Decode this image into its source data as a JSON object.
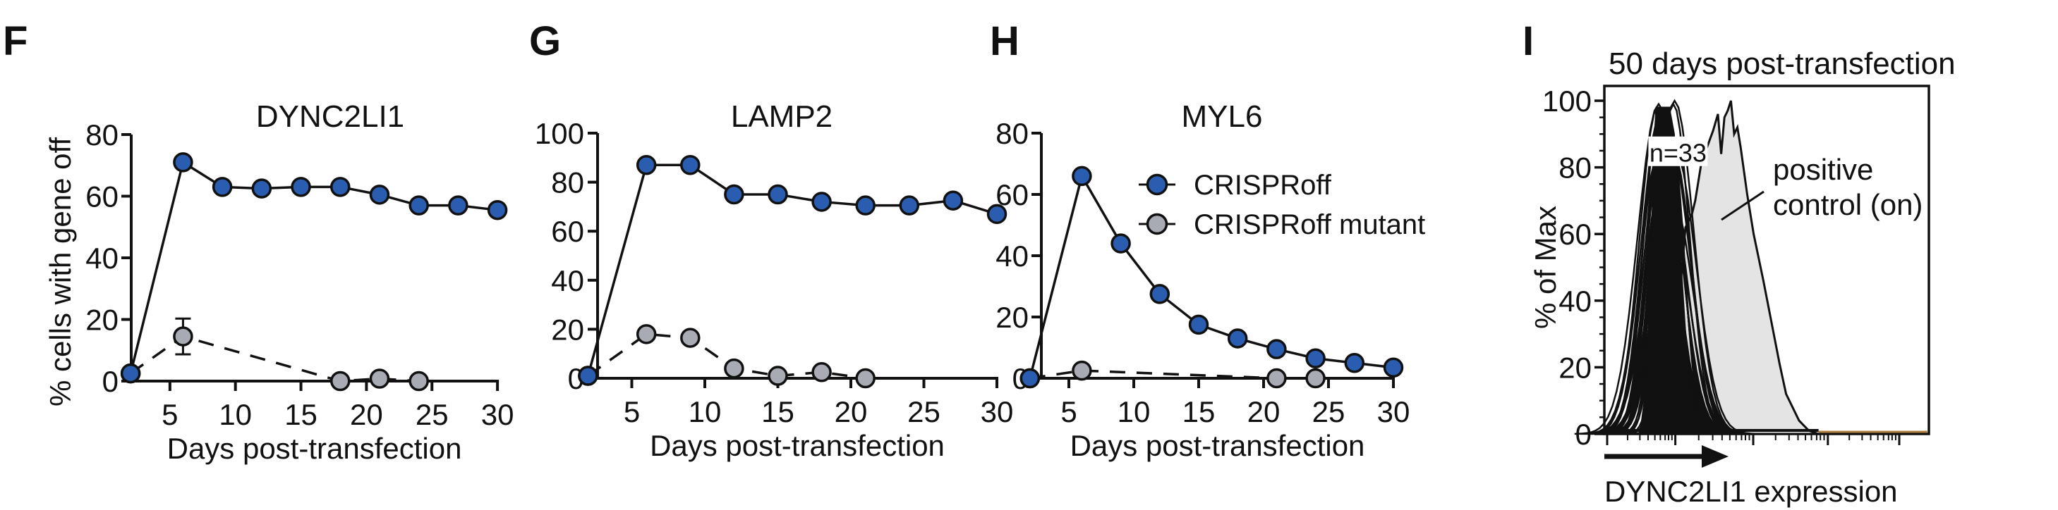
{
  "colors": {
    "crisproff": "#2a5db0",
    "mutant": "#a9abb4",
    "line": "#111111",
    "control_fill": "#e4e4e4",
    "accent_line": "#b08040"
  },
  "chart_data": [
    {
      "panel": "F",
      "type": "line",
      "title": "DYNC2LI1",
      "xlabel": "Days post-transfection",
      "ylabel": "% cells with gene off",
      "xlim": [
        2,
        30
      ],
      "ylim": [
        0,
        80
      ],
      "xticks": [
        5,
        10,
        15,
        20,
        25,
        30
      ],
      "yticks": [
        0,
        20,
        40,
        60,
        80
      ],
      "series": [
        {
          "name": "CRISPRoff",
          "x": [
            2,
            6,
            9,
            12,
            15,
            18,
            21,
            24,
            27,
            30
          ],
          "y": [
            2.5,
            71,
            63,
            62.5,
            63,
            63,
            60.5,
            57,
            57,
            55.5
          ]
        },
        {
          "name": "CRISPRoff mutant",
          "x": [
            2,
            6,
            18,
            21,
            24
          ],
          "y": [
            2.5,
            14.5,
            0,
            0.8,
            0
          ],
          "error": [
            0,
            5.8,
            0,
            0,
            0
          ]
        }
      ]
    },
    {
      "panel": "G",
      "type": "line",
      "title": "LAMP2",
      "xlabel": "Days post-transfection",
      "ylabel": "",
      "xlim": [
        2,
        30
      ],
      "ylim": [
        0,
        100
      ],
      "xticks": [
        5,
        10,
        15,
        20,
        25,
        30
      ],
      "yticks": [
        0,
        20,
        40,
        60,
        80,
        100
      ],
      "series": [
        {
          "name": "CRISPRoff",
          "x": [
            2,
            6,
            9,
            12,
            15,
            18,
            21,
            24,
            27,
            30
          ],
          "y": [
            1,
            87,
            87,
            75,
            75,
            72,
            70.5,
            70.5,
            72.5,
            67
          ]
        },
        {
          "name": "CRISPRoff mutant",
          "x": [
            2,
            6,
            9,
            12,
            15,
            18,
            21
          ],
          "y": [
            1,
            18,
            16.5,
            4,
            1,
            2.5,
            0
          ]
        }
      ]
    },
    {
      "panel": "H",
      "type": "line",
      "title": "MYL6",
      "xlabel": "Days post-transfection",
      "ylabel": "",
      "xlim": [
        2,
        30
      ],
      "ylim": [
        0,
        80
      ],
      "xticks": [
        5,
        10,
        15,
        20,
        25,
        30
      ],
      "yticks": [
        0,
        20,
        40,
        60,
        80
      ],
      "legend": {
        "placement": "top-right",
        "entries": [
          "CRISPRoff",
          "CRISPRoff mutant"
        ]
      },
      "series": [
        {
          "name": "CRISPRoff",
          "x": [
            2,
            6,
            9,
            12,
            15,
            18,
            21,
            24,
            27,
            30
          ],
          "y": [
            0,
            66,
            44,
            27.5,
            17.5,
            13,
            9.5,
            6.5,
            5,
            3.5
          ]
        },
        {
          "name": "CRISPRoff mutant",
          "x": [
            2,
            6,
            21,
            24
          ],
          "y": [
            0,
            2.5,
            0,
            0
          ]
        }
      ]
    },
    {
      "panel": "I",
      "type": "area",
      "title": "50 days post-transfection",
      "xlabel": "DYNC2LI1 expression",
      "ylabel": "% of Max",
      "ylim": [
        0,
        100
      ],
      "yticks": [
        0,
        20,
        40,
        60,
        80,
        100
      ],
      "xscale": "log (unlabeled)",
      "annotations": [
        "n=33",
        "positive control (on)"
      ],
      "series": [
        {
          "name": "CRISPRoff samples (n=33)",
          "style": "black outline overlays",
          "peak_position": 0.2,
          "peak_value": 100
        },
        {
          "name": "positive control (on)",
          "style": "gray filled",
          "peak_position": 0.38,
          "peak_value": 100
        }
      ]
    }
  ],
  "panel_letters": [
    "F",
    "G",
    "H",
    "I"
  ],
  "legend": {
    "items": [
      "CRISPRoff",
      "CRISPRoff mutant"
    ]
  },
  "panel_i": {
    "n_label": "n=33",
    "control_label_1": "positive",
    "control_label_2": "control (on)"
  }
}
